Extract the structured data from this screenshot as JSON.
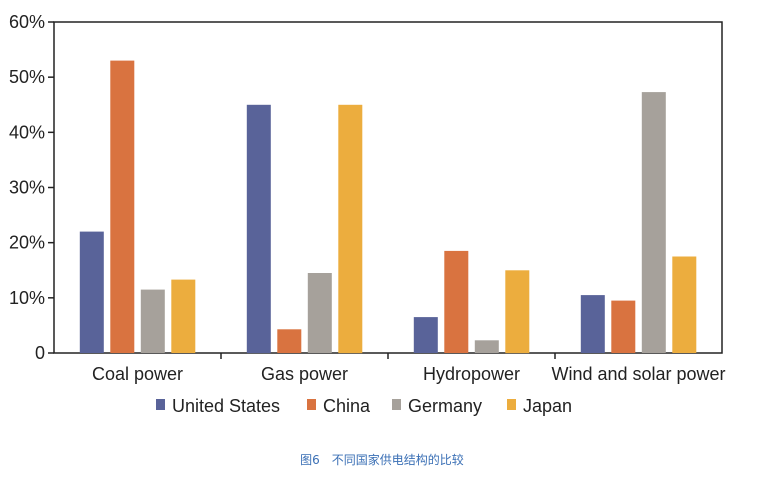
{
  "caption": "图6　不同国家供电结构的比较",
  "chart_data": {
    "type": "bar",
    "title": "",
    "xlabel": "",
    "ylabel": "",
    "categories": [
      "Coal power",
      "Gas power",
      "Hydropower",
      "Wind and solar power"
    ],
    "series": [
      {
        "name": "United States",
        "color": "#596399",
        "values": [
          22,
          45,
          6.5,
          10.5
        ]
      },
      {
        "name": "China",
        "color": "#d97340",
        "values": [
          53,
          4.3,
          18.5,
          9.5
        ]
      },
      {
        "name": "Germany",
        "color": "#a6a19b",
        "values": [
          11.5,
          14.5,
          2.3,
          47.3
        ]
      },
      {
        "name": "Japan",
        "color": "#ecad3e",
        "values": [
          13.3,
          45,
          15,
          17.5
        ]
      }
    ],
    "ylim": [
      0,
      60
    ],
    "yticks": [
      0,
      10,
      20,
      30,
      40,
      50,
      60
    ],
    "ytick_labels": [
      "0",
      "10%",
      "20%",
      "30%",
      "40%",
      "50%",
      "60%"
    ],
    "grid": false,
    "legend_position": "bottom"
  }
}
